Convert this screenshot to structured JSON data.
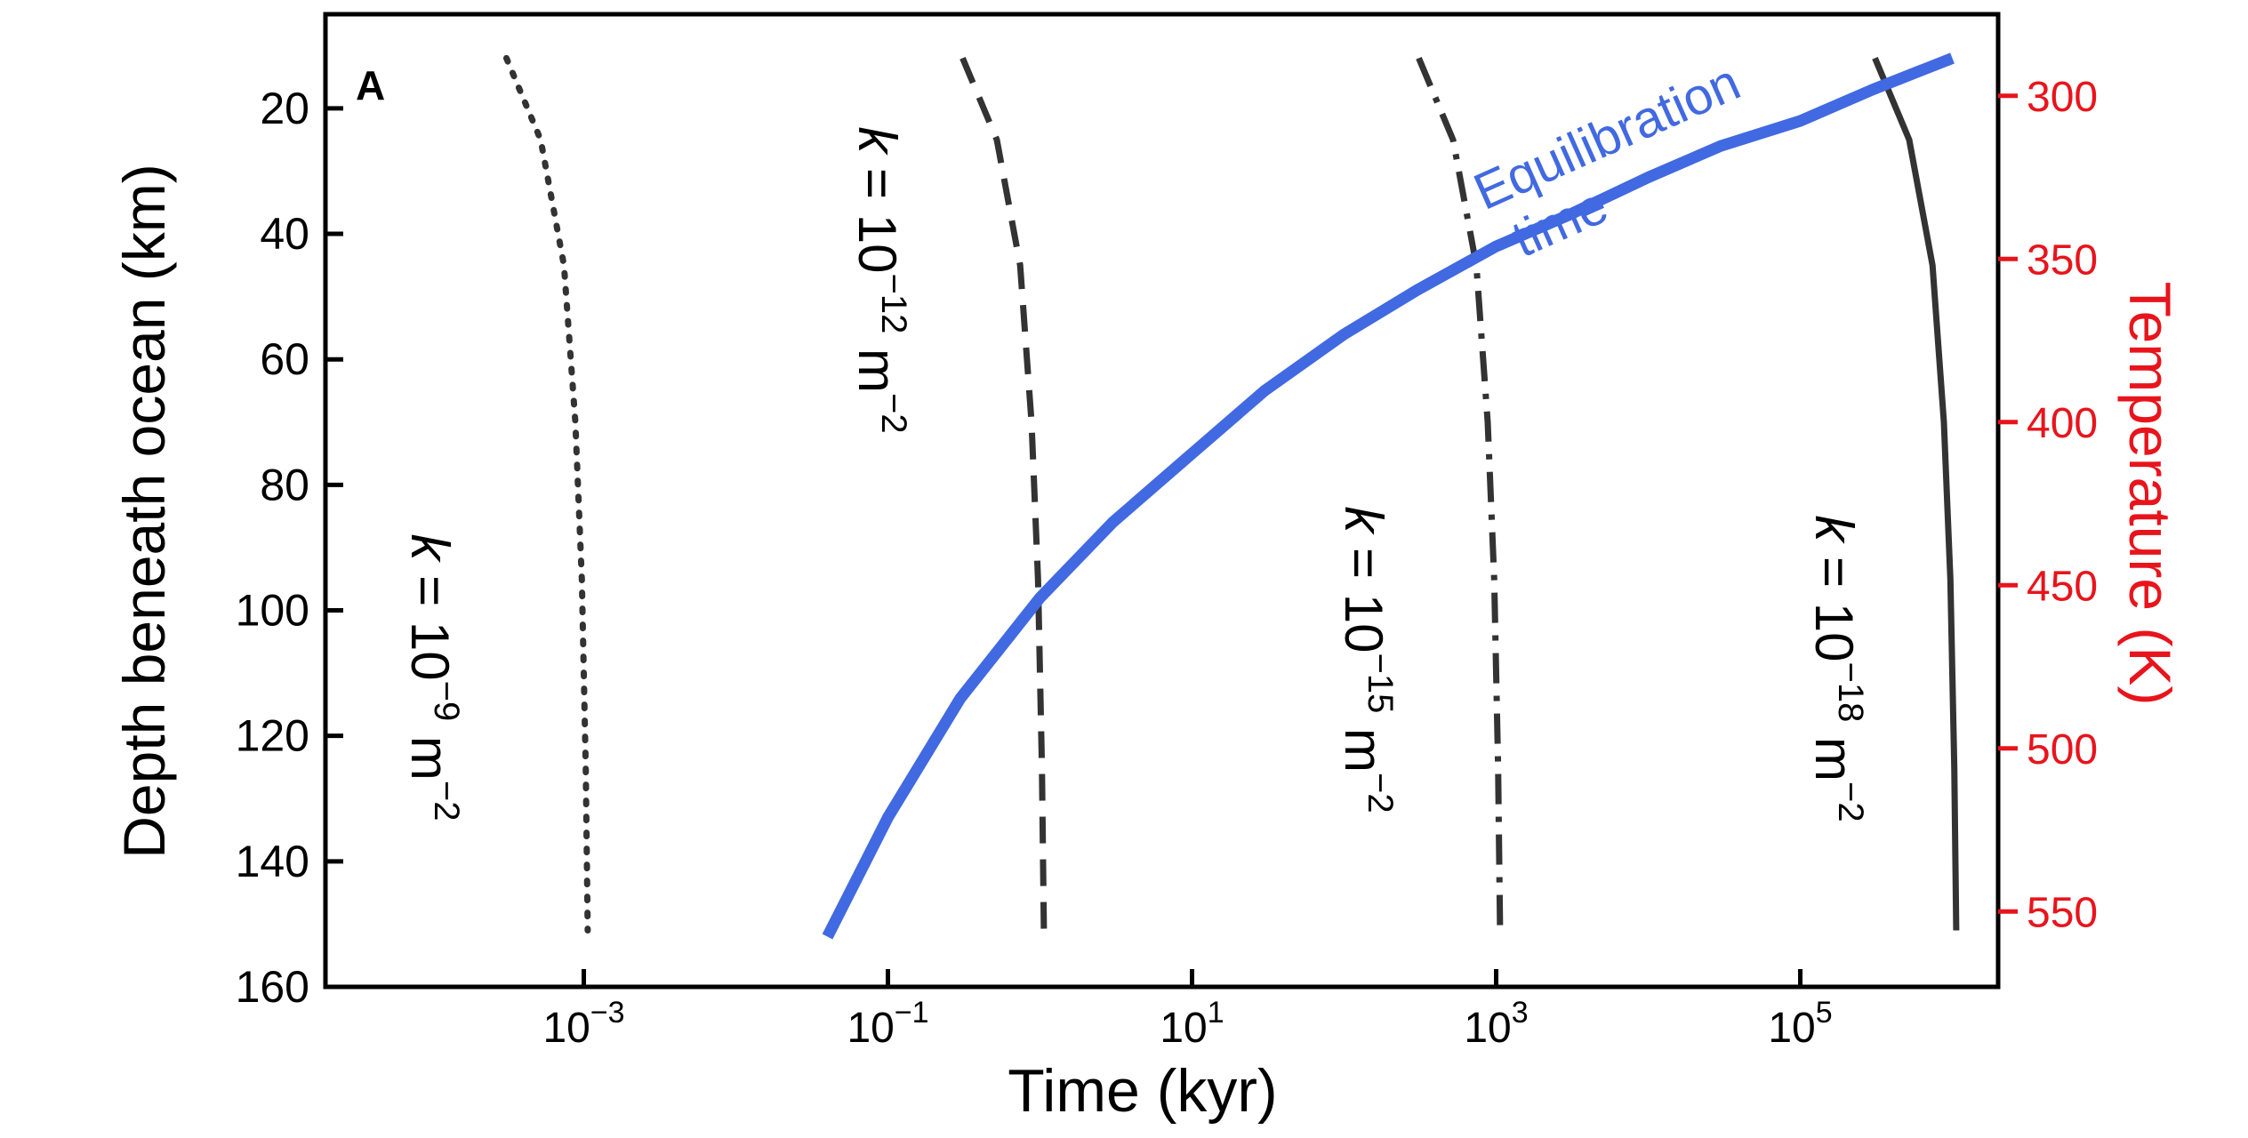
{
  "chart_data": {
    "type": "line",
    "panel_label": "A",
    "xlabel": "Time (kyr)",
    "ylabel": "Depth beneath ocean (km)",
    "y2label": "Temperature (K)",
    "x_scale": "log",
    "xlim": [
      2e-05,
      2000000
    ],
    "ylim": [
      160,
      5
    ],
    "x_ticks": [
      {
        "value": 0.001,
        "base": "10",
        "exp": "−3"
      },
      {
        "value": 0.1,
        "base": "10",
        "exp": "−1"
      },
      {
        "value": 10,
        "base": "10",
        "exp": "1"
      },
      {
        "value": 1000,
        "base": "10",
        "exp": "3"
      },
      {
        "value": 100000,
        "base": "10",
        "exp": "5"
      }
    ],
    "y_ticks": [
      20,
      40,
      60,
      80,
      100,
      120,
      140,
      160
    ],
    "y2_ticks": [
      {
        "label": "300",
        "depth": 18
      },
      {
        "label": "350",
        "depth": 44
      },
      {
        "label": "400",
        "depth": 70
      },
      {
        "label": "450",
        "depth": 96
      },
      {
        "label": "500",
        "depth": 122
      },
      {
        "label": "550",
        "depth": 148
      }
    ],
    "y2_color": "#e8141c",
    "series": [
      {
        "name_prefix": "k",
        "name_base": " = 10",
        "name_exp": "−9",
        "name_unit": " m",
        "name_unit_exp": "−2",
        "style": "dotted",
        "color": "#333333",
        "x": [
          0.00031,
          0.00052,
          0.00074,
          0.00088,
          0.00097,
          0.00103,
          0.00106
        ],
        "y": [
          12,
          25,
          45,
          70,
          95,
          125,
          151
        ]
      },
      {
        "name_prefix": "k",
        "name_base": " = 10",
        "name_exp": "−12",
        "name_unit": " m",
        "name_unit_exp": "−2",
        "style": "dashed",
        "color": "#333333",
        "x": [
          0.31,
          0.52,
          0.74,
          0.88,
          0.97,
          1.03,
          1.06
        ],
        "y": [
          12,
          25,
          45,
          70,
          95,
          125,
          151
        ]
      },
      {
        "name_prefix": "k",
        "name_base": " = 10",
        "name_exp": "−15",
        "name_unit": " m",
        "name_unit_exp": "−2",
        "style": "dashdot",
        "color": "#333333",
        "x": [
          310,
          520,
          740,
          880,
          970,
          1030,
          1060
        ],
        "y": [
          12,
          25,
          45,
          70,
          95,
          125,
          151
        ]
      },
      {
        "name_prefix": "k",
        "name_base": " = 10",
        "name_exp": "−18",
        "name_unit": " m",
        "name_unit_exp": "−2",
        "style": "solid",
        "color": "#333333",
        "x": [
          310000,
          520000,
          740000,
          880000,
          970000,
          1030000,
          1060000
        ],
        "y": [
          12,
          25,
          45,
          70,
          95,
          125,
          151
        ]
      },
      {
        "name": "Equilibration time",
        "name_line1": "Equilibration",
        "name_line2": "time",
        "style": "thick",
        "color": "#4169e1",
        "x": [
          0.04,
          0.1,
          0.3,
          1,
          3,
          10,
          30,
          100,
          300,
          1000,
          3000,
          10000,
          30000,
          100000,
          300000,
          1000000
        ],
        "y": [
          152,
          133,
          114,
          98,
          86,
          75,
          65,
          56,
          49,
          42,
          37,
          31,
          26,
          22,
          17,
          12
        ]
      }
    ]
  }
}
